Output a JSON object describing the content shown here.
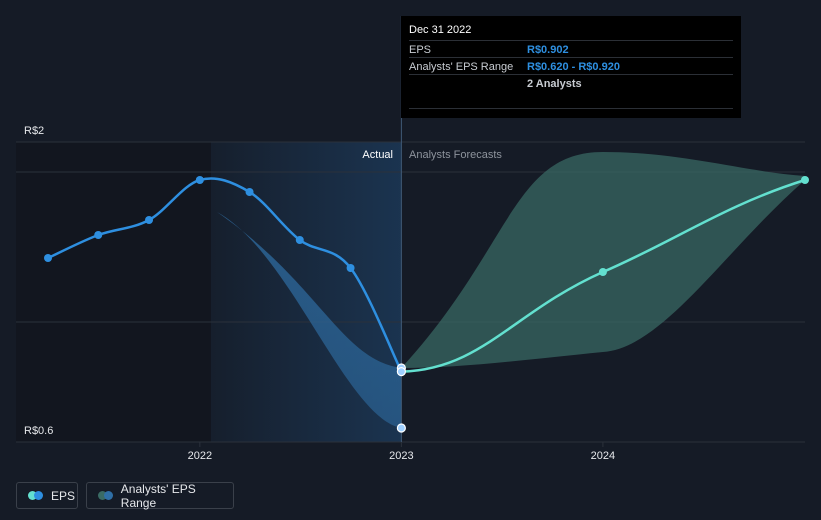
{
  "chart_data": {
    "type": "line",
    "y_tick_labels": [
      "R$2",
      "R$0.6"
    ],
    "x_tick_labels": [
      "2022",
      "2023",
      "2024"
    ],
    "xlim": [
      "2021-03-31",
      "2024-12-31"
    ],
    "ylim": [
      0.55,
      2.05
    ],
    "region_labels": {
      "actual": "Actual",
      "forecast": "Analysts Forecasts"
    },
    "eps_actual": [
      {
        "date": "2021-03-31",
        "value": 1.47
      },
      {
        "date": "2021-06-30",
        "value": 1.585
      },
      {
        "date": "2021-09-30",
        "value": 1.66
      },
      {
        "date": "2021-12-31",
        "value": 1.86
      },
      {
        "date": "2022-03-31",
        "value": 1.8
      },
      {
        "date": "2022-06-30",
        "value": 1.56
      },
      {
        "date": "2022-09-30",
        "value": 1.42
      },
      {
        "date": "2022-12-31",
        "value": 0.902
      }
    ],
    "eps_forecast": [
      {
        "date": "2022-12-31",
        "value": 0.902
      },
      {
        "date": "2023-12-31",
        "value": 1.4
      },
      {
        "date": "2024-12-31",
        "value": 1.86
      }
    ],
    "range_past": [
      {
        "date": "2022-01-31",
        "low": 1.7,
        "high": 1.7
      },
      {
        "date": "2022-12-31",
        "low": 0.62,
        "high": 0.92
      }
    ],
    "range_forecast": [
      {
        "date": "2022-12-31",
        "low": 0.92,
        "high": 0.92
      },
      {
        "date": "2023-12-31",
        "low": 1.0,
        "high": 2.0
      },
      {
        "date": "2024-12-31",
        "low": 1.86,
        "high": 1.88
      }
    ],
    "colors": {
      "eps_actual": "#2e8fe0",
      "eps_forecast": "#63e0cf",
      "range_past": "#2f6fa6",
      "range_forecast": "#3a6b65",
      "actual_band": "#1b3552",
      "grid": "#2b313b"
    }
  },
  "tooltip": {
    "title": "Dec 31 2022",
    "eps_label": "EPS",
    "eps_value": "R$0.902",
    "range_label": "Analysts' EPS Range",
    "range_value": "R$0.620 - R$0.920",
    "analysts": "2 Analysts",
    "value_color": "#2e8fe0"
  },
  "legend": {
    "eps_label": "EPS",
    "range_label": "Analysts' EPS Range"
  }
}
